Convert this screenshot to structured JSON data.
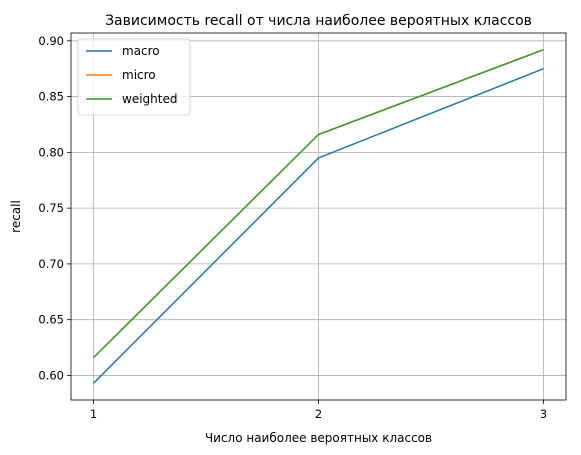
{
  "chart_data": {
    "type": "line",
    "title": "Зависимость recall от числа наиболее вероятных классов",
    "xlabel": "Число наиболее вероятных классов",
    "ylabel": "recall",
    "x": [
      1,
      2,
      3
    ],
    "xticks": [
      1,
      2,
      3
    ],
    "yticks": [
      0.6,
      0.65,
      0.7,
      0.75,
      0.8,
      0.85,
      0.9
    ],
    "ylim": [
      0.578,
      0.907
    ],
    "xlim": [
      0.9,
      3.1
    ],
    "grid": true,
    "legend_position": "top-left",
    "series": [
      {
        "name": "macro",
        "color": "#1f77b4",
        "values": [
          0.593,
          0.795,
          0.875
        ]
      },
      {
        "name": "micro",
        "color": "#ff7f0e",
        "values": [
          0.616,
          0.816,
          0.892
        ]
      },
      {
        "name": "weighted",
        "color": "#2ca02c",
        "values": [
          0.616,
          0.816,
          0.892
        ]
      }
    ]
  }
}
